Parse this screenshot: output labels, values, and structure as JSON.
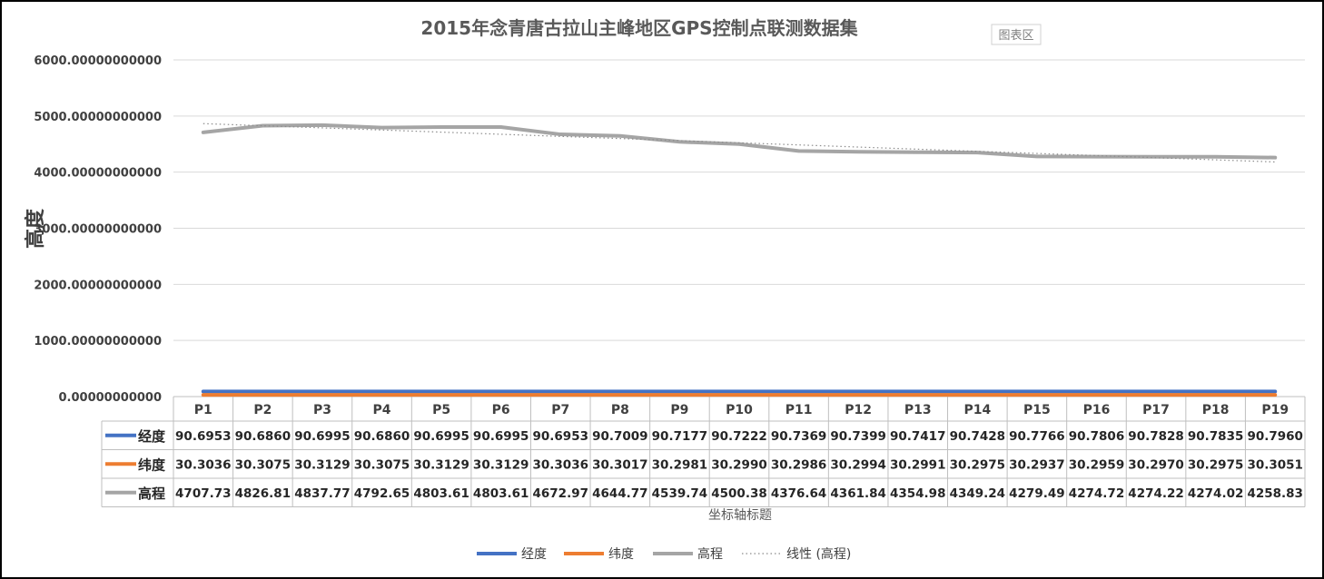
{
  "chart_data": {
    "type": "line",
    "title": "2015年念青唐古拉山主峰地区GPS控制点联测数据集",
    "ylabel": "高度",
    "xlabel": "坐标轴标题",
    "ylim": [
      0,
      6000
    ],
    "yticks": [
      "0.00000000000",
      "1000.00000000000",
      "2000.00000000000",
      "3000.00000000000",
      "4000.00000000000",
      "5000.00000000000",
      "6000.00000000000"
    ],
    "grid": true,
    "legend_position": "bottom",
    "chart_area_tag": "图表区",
    "categories": [
      "P1",
      "P2",
      "P3",
      "P4",
      "P5",
      "P6",
      "P7",
      "P8",
      "P9",
      "P10",
      "P11",
      "P12",
      "P13",
      "P14",
      "P15",
      "P16",
      "P17",
      "P18",
      "P19"
    ],
    "series": [
      {
        "name": "经度",
        "color": "#4472C4",
        "values": [
          90.6953,
          90.686,
          90.6995,
          90.686,
          90.6995,
          90.6995,
          90.6953,
          90.7009,
          90.7177,
          90.7222,
          90.7369,
          90.7399,
          90.7417,
          90.7428,
          90.7766,
          90.7806,
          90.7828,
          90.7835,
          90.796
        ],
        "labels": [
          "90.6953",
          "90.6860",
          "90.6995",
          "90.6860",
          "90.6995",
          "90.6995",
          "90.6953",
          "90.7009",
          "90.7177",
          "90.7222",
          "90.7369",
          "90.7399",
          "90.7417",
          "90.7428",
          "90.7766",
          "90.7806",
          "90.7828",
          "90.7835",
          "90.7960"
        ]
      },
      {
        "name": "纬度",
        "color": "#ED7D31",
        "values": [
          30.3036,
          30.3075,
          30.3129,
          30.3075,
          30.3129,
          30.3129,
          30.3036,
          30.3017,
          30.2981,
          30.299,
          30.2986,
          30.2994,
          30.2991,
          30.2975,
          30.2937,
          30.2959,
          30.297,
          30.2975,
          30.3051
        ],
        "labels": [
          "30.3036",
          "30.3075",
          "30.3129",
          "30.3075",
          "30.3129",
          "30.3129",
          "30.3036",
          "30.3017",
          "30.2981",
          "30.2990",
          "30.2986",
          "30.2994",
          "30.2991",
          "30.2975",
          "30.2937",
          "30.2959",
          "30.2970",
          "30.2975",
          "30.3051"
        ]
      },
      {
        "name": "高程",
        "color": "#A5A5A5",
        "values": [
          4707.73,
          4826.81,
          4837.77,
          4792.65,
          4803.61,
          4803.61,
          4672.97,
          4644.77,
          4539.74,
          4500.38,
          4376.64,
          4361.84,
          4354.98,
          4349.24,
          4279.49,
          4274.72,
          4274.22,
          4274.02,
          4258.83
        ],
        "labels": [
          "4707.73",
          "4826.81",
          "4837.77",
          "4792.65",
          "4803.61",
          "4803.61",
          "4672.97",
          "4644.77",
          "4539.74",
          "4500.38",
          "4376.64",
          "4361.84",
          "4354.98",
          "4349.24",
          "4279.49",
          "4274.72",
          "4274.22",
          "4274.02",
          "4258.83"
        ]
      }
    ],
    "trendline": {
      "name": "线性 (高程)",
      "of_series": "高程",
      "type": "linear",
      "color": "#A5A5A5"
    }
  }
}
